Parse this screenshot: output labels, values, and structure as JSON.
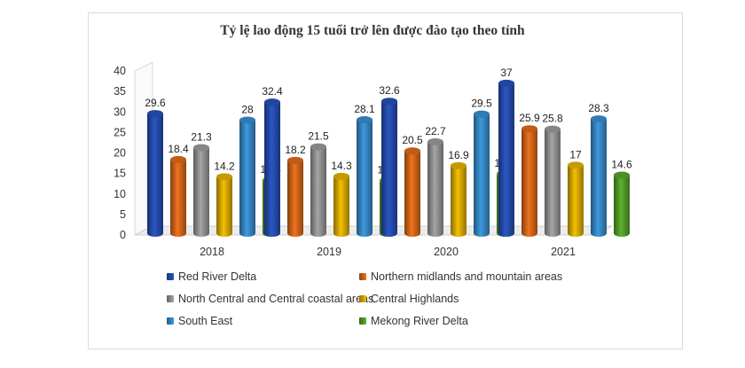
{
  "chart_data": {
    "type": "bar",
    "title": "Tỷ lệ lao động 15 tuổi trở lên được đào tạo theo tỉnh",
    "categories": [
      "2018",
      "2019",
      "2020",
      "2021"
    ],
    "ylim": [
      0,
      40
    ],
    "yticks": [
      0,
      5,
      10,
      15,
      20,
      25,
      30,
      35,
      40
    ],
    "grid": false,
    "legend_position": "bottom",
    "series": [
      {
        "name": "Red River Delta",
        "color": "#2a56c6",
        "values": [
          29.6,
          32.4,
          32.6,
          37
        ]
      },
      {
        "name": "Northern midlands and mountain areas",
        "color": "#f0731c",
        "values": [
          18.4,
          18.2,
          20.5,
          25.9
        ]
      },
      {
        "name": "North Central and Central coastal areas",
        "color": "#a6a6a6",
        "values": [
          21.3,
          21.5,
          22.7,
          25.8
        ]
      },
      {
        "name": "Central Highlands",
        "color": "#f5c000",
        "values": [
          14.2,
          14.3,
          16.9,
          17
        ]
      },
      {
        "name": "South East",
        "color": "#3d9ae0",
        "values": [
          28,
          28.1,
          29.5,
          28.3
        ]
      },
      {
        "name": "Mekong River Delta",
        "color": "#5db12d",
        "values": [
          13.4,
          13.3,
          14.9,
          14.6
        ]
      }
    ]
  }
}
